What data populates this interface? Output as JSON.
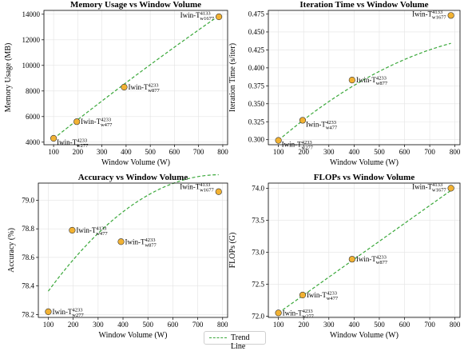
{
  "chart_data": [
    {
      "type": "scatter",
      "title": "Memory Usage vs Window Volume",
      "xlabel": "Window Volume (W)",
      "ylabel": "Memory Usage (MB)",
      "xlim": [
        60,
        820
      ],
      "ylim": [
        3800,
        14300
      ],
      "xticks": [
        100,
        200,
        300,
        400,
        500,
        600,
        700,
        800
      ],
      "yticks": [
        4000,
        6000,
        8000,
        10000,
        12000,
        14000
      ],
      "points": [
        {
          "x": 100,
          "y": 4300,
          "label": "Iwin-T",
          "sup": "4233",
          "sub": "w277",
          "pos": "below-right"
        },
        {
          "x": 196,
          "y": 5600,
          "label": "Iwin-T",
          "sup": "4233",
          "sub": "w477",
          "pos": "right"
        },
        {
          "x": 392,
          "y": 8300,
          "label": "Iwin-T",
          "sup": "4233",
          "sub": "w877",
          "pos": "right"
        },
        {
          "x": 784,
          "y": 13800,
          "label": "Iwin-T",
          "sup": "4133",
          "sub": "w1677",
          "pos": "left"
        }
      ],
      "trend": {
        "type": "quadratic",
        "coef": [
          -0.0014,
          15.29,
          2757
        ]
      },
      "grid": true
    },
    {
      "type": "scatter",
      "title": "Iteration Time vs Window Volume",
      "xlabel": "Window Volume (W)",
      "ylabel": "Iteration Time (s/iter)",
      "xlim": [
        60,
        820
      ],
      "ylim": [
        0.293,
        0.48
      ],
      "xticks": [
        100,
        200,
        300,
        400,
        500,
        600,
        700,
        800
      ],
      "yticks": [
        0.3,
        0.325,
        0.35,
        0.375,
        0.4,
        0.425,
        0.45,
        0.475
      ],
      "tick_decimals": 3,
      "points": [
        {
          "x": 100,
          "y": 0.299,
          "label": "Iwin-T",
          "sup": "4233",
          "sub": "w277",
          "pos": "below-right"
        },
        {
          "x": 196,
          "y": 0.327,
          "label": "Iwin-T",
          "sup": "4233",
          "sub": "w477",
          "pos": "below-right"
        },
        {
          "x": 392,
          "y": 0.383,
          "label": "Iwin-T",
          "sup": "4233",
          "sub": "w877",
          "pos": "right"
        },
        {
          "x": 784,
          "y": 0.473,
          "label": "Iwin-T",
          "sup": "4133",
          "sub": "w1677",
          "pos": "left"
        }
      ],
      "trend": {
        "type": "quadratic",
        "coef": [
          -1.5e-07,
          0.00033,
          0.2676
        ]
      },
      "grid": true
    },
    {
      "type": "scatter",
      "title": "Accuracy vs Window Volume",
      "xlabel": "Window Volume (W)",
      "ylabel": "Accuracy (%)",
      "xlim": [
        60,
        820
      ],
      "ylim": [
        78.18,
        79.12
      ],
      "xticks": [
        100,
        200,
        300,
        400,
        500,
        600,
        700,
        800
      ],
      "yticks": [
        78.2,
        78.4,
        78.6,
        78.8,
        79.0
      ],
      "tick_decimals": 1,
      "points": [
        {
          "x": 100,
          "y": 78.22,
          "label": "Iwin-T",
          "sup": "4233",
          "sub": "w277",
          "pos": "right"
        },
        {
          "x": 196,
          "y": 78.79,
          "label": "Iwin-T",
          "sup": "4133",
          "sub": "w477",
          "pos": "right"
        },
        {
          "x": 392,
          "y": 78.71,
          "label": "Iwin-T",
          "sup": "4233",
          "sub": "w877",
          "pos": "right"
        },
        {
          "x": 784,
          "y": 79.06,
          "label": "Iwin-T",
          "sup": "4133",
          "sub": "w1677",
          "pos": "above-left"
        }
      ],
      "trend": {
        "type": "quadratic",
        "coef": [
          -1.72e-06,
          0.002712,
          78.1095
        ]
      },
      "grid": true
    },
    {
      "type": "scatter",
      "title": "FLOPs vs Window Volume",
      "xlabel": "Window Volume (W)",
      "ylabel": "FLOPs (G)",
      "xlim": [
        60,
        820
      ],
      "ylim": [
        71.98,
        74.08
      ],
      "xticks": [
        100,
        200,
        300,
        400,
        500,
        600,
        700,
        800
      ],
      "yticks": [
        72.0,
        72.5,
        73.0,
        73.5,
        74.0
      ],
      "tick_decimals": 1,
      "points": [
        {
          "x": 100,
          "y": 72.05,
          "label": "Iwin-T",
          "sup": "4233",
          "sub": "w277",
          "pos": "right"
        },
        {
          "x": 196,
          "y": 72.33,
          "label": "Iwin-T",
          "sup": "4233",
          "sub": "w477",
          "pos": "right"
        },
        {
          "x": 392,
          "y": 72.89,
          "label": "Iwin-T",
          "sup": "4233",
          "sub": "w877",
          "pos": "right"
        },
        {
          "x": 784,
          "y": 74.0,
          "label": "Iwin-T",
          "sup": "4133",
          "sub": "w1677",
          "pos": "left"
        }
      ],
      "trend": {
        "type": "linear",
        "coef": [
          0,
          0.0028,
          71.77
        ]
      },
      "grid": true
    }
  ],
  "legend": {
    "label": "Trend Line",
    "position": "bottom-center"
  },
  "colors": {
    "point_fill": "#f2b233",
    "trend": "#3aa83a"
  }
}
